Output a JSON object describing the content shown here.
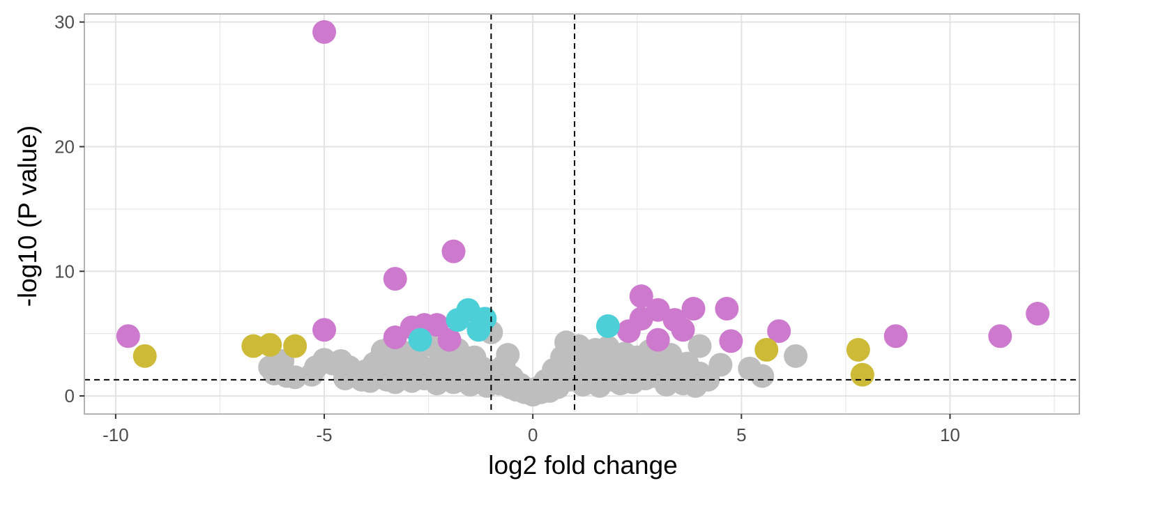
{
  "chart_data": {
    "type": "scatter",
    "title": "",
    "xlabel": "log2 fold change",
    "ylabel": "-log10 (P value)",
    "xlim": [
      -10.75,
      13.1
    ],
    "ylim": [
      -1.45,
      30.65
    ],
    "x_ticks": [
      -10,
      -5,
      0,
      5,
      10
    ],
    "x_tick_labels": [
      "-10",
      "-5",
      "0",
      "5",
      "10"
    ],
    "y_ticks": [
      0,
      10,
      20,
      30
    ],
    "y_tick_labels": [
      "0",
      "10",
      "20",
      "30"
    ],
    "grid": true,
    "legend": "none",
    "thresholds": {
      "log2fc": [
        -1,
        1
      ],
      "neg_log10_p": 1.3
    },
    "colors": {
      "ns": "#bebebe",
      "sig_fc": "#cd79cd",
      "sig_p": "#4ccfd6",
      "fc_only": "#cdbb37",
      "grid": "#e3e3e3",
      "panel_border": "#b3b3b3",
      "threshold_line": "#000000"
    },
    "series": [
      {
        "key": "ns",
        "points": [
          [
            -6.3,
            2.3
          ],
          [
            -6.2,
            1.8
          ],
          [
            -6.0,
            2.8
          ],
          [
            -5.9,
            1.6
          ],
          [
            -5.7,
            1.5
          ],
          [
            -5.3,
            1.7
          ],
          [
            -5.2,
            2.3
          ],
          [
            -5.0,
            2.9
          ],
          [
            -4.8,
            2.6
          ],
          [
            -4.6,
            2.8
          ],
          [
            -4.5,
            1.4
          ],
          [
            -4.4,
            2.3
          ],
          [
            -4.2,
            1.8
          ],
          [
            -4.1,
            1.3
          ],
          [
            -4.0,
            2.0
          ],
          [
            -3.9,
            1.2
          ],
          [
            -3.8,
            2.6
          ],
          [
            -3.7,
            1.6
          ],
          [
            -3.6,
            3.6
          ],
          [
            -3.5,
            2.4
          ],
          [
            -3.5,
            1.3
          ],
          [
            -3.4,
            3.9
          ],
          [
            -3.3,
            1.1
          ],
          [
            -3.2,
            2.8
          ],
          [
            -3.1,
            3.5
          ],
          [
            -3.0,
            1.7
          ],
          [
            -2.9,
            1.2
          ],
          [
            -2.8,
            3.2
          ],
          [
            -2.7,
            2.4
          ],
          [
            -2.6,
            1.4
          ],
          [
            -2.5,
            4.1
          ],
          [
            -2.4,
            2.2
          ],
          [
            -2.3,
            1.0
          ],
          [
            -2.2,
            3.0
          ],
          [
            -2.1,
            1.8
          ],
          [
            -2.0,
            2.9
          ],
          [
            -1.9,
            1.1
          ],
          [
            -1.8,
            3.7
          ],
          [
            -1.7,
            1.6
          ],
          [
            -1.6,
            2.5
          ],
          [
            -1.5,
            0.9
          ],
          [
            -1.4,
            3.1
          ],
          [
            -1.3,
            1.4
          ],
          [
            -1.2,
            2.2
          ],
          [
            -1.1,
            0.8
          ],
          [
            -1.0,
            5.1
          ],
          [
            -0.9,
            2.0
          ],
          [
            -0.8,
            1.0
          ],
          [
            -0.7,
            2.4
          ],
          [
            -0.6,
            3.3
          ],
          [
            -0.55,
            0.7
          ],
          [
            -0.5,
            1.5
          ],
          [
            -0.4,
            0.5
          ],
          [
            -0.3,
            0.9
          ],
          [
            -0.2,
            0.3
          ],
          [
            -0.1,
            0.5
          ],
          [
            0.0,
            0.1
          ],
          [
            0.1,
            0.6
          ],
          [
            0.2,
            0.3
          ],
          [
            0.3,
            1.2
          ],
          [
            0.4,
            0.4
          ],
          [
            0.5,
            2.1
          ],
          [
            0.6,
            0.7
          ],
          [
            0.7,
            3.1
          ],
          [
            0.8,
            4.3
          ],
          [
            0.9,
            1.3
          ],
          [
            1.0,
            2.5
          ],
          [
            1.1,
            4.0
          ],
          [
            1.2,
            0.9
          ],
          [
            1.3,
            3.3
          ],
          [
            1.4,
            1.8
          ],
          [
            1.5,
            3.7
          ],
          [
            1.6,
            0.8
          ],
          [
            1.7,
            2.6
          ],
          [
            1.8,
            3.9
          ],
          [
            1.9,
            1.3
          ],
          [
            2.0,
            2.9
          ],
          [
            2.1,
            1.0
          ],
          [
            2.2,
            3.4
          ],
          [
            2.3,
            1.9
          ],
          [
            2.4,
            1.1
          ],
          [
            2.5,
            3.1
          ],
          [
            2.6,
            2.3
          ],
          [
            2.7,
            1.4
          ],
          [
            2.8,
            3.6
          ],
          [
            2.9,
            1.6
          ],
          [
            3.0,
            2.9
          ],
          [
            3.1,
            1.9
          ],
          [
            3.2,
            0.9
          ],
          [
            3.3,
            3.3
          ],
          [
            3.4,
            2.2
          ],
          [
            3.5,
            1.4
          ],
          [
            3.6,
            1.0
          ],
          [
            3.7,
            2.6
          ],
          [
            3.8,
            1.6
          ],
          [
            3.9,
            0.8
          ],
          [
            4.0,
            1.8
          ],
          [
            4.0,
            4.0
          ],
          [
            4.2,
            1.3
          ],
          [
            4.5,
            2.5
          ],
          [
            5.2,
            2.2
          ],
          [
            5.5,
            1.6
          ],
          [
            6.3,
            3.2
          ]
        ]
      },
      {
        "key": "sig_fc",
        "points": [
          [
            -9.7,
            4.8
          ],
          [
            -5.0,
            29.2
          ],
          [
            -5.0,
            5.3
          ],
          [
            -3.3,
            9.4
          ],
          [
            -3.3,
            4.7
          ],
          [
            -2.9,
            5.5
          ],
          [
            -2.6,
            5.7
          ],
          [
            -2.3,
            5.7
          ],
          [
            -2.0,
            4.5
          ],
          [
            -1.9,
            11.6
          ],
          [
            2.3,
            5.2
          ],
          [
            2.6,
            8.0
          ],
          [
            2.6,
            6.2
          ],
          [
            3.0,
            6.9
          ],
          [
            3.0,
            4.5
          ],
          [
            3.4,
            6.1
          ],
          [
            3.6,
            5.3
          ],
          [
            3.85,
            7.0
          ],
          [
            4.65,
            7.0
          ],
          [
            4.75,
            4.4
          ],
          [
            5.9,
            5.2
          ],
          [
            8.7,
            4.8
          ],
          [
            11.2,
            4.8
          ],
          [
            12.1,
            6.6
          ]
        ]
      },
      {
        "key": "sig_p",
        "points": [
          [
            -2.7,
            4.5
          ],
          [
            -1.8,
            6.1
          ],
          [
            -1.55,
            6.9
          ],
          [
            -1.15,
            6.2
          ],
          [
            -1.3,
            5.3
          ],
          [
            1.8,
            5.6
          ]
        ]
      },
      {
        "key": "fc_only",
        "points": [
          [
            -9.3,
            3.2
          ],
          [
            -6.7,
            4.0
          ],
          [
            -6.3,
            4.1
          ],
          [
            -5.7,
            4.0
          ],
          [
            5.6,
            3.7
          ],
          [
            7.8,
            3.7
          ],
          [
            7.9,
            1.7
          ]
        ]
      }
    ]
  }
}
